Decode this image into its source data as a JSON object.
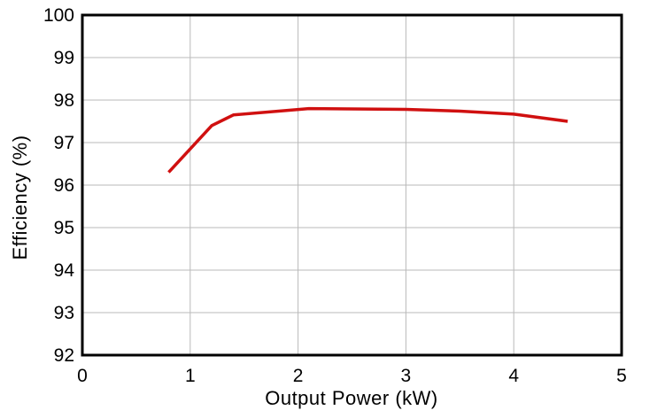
{
  "chart_data": {
    "type": "line",
    "title": "",
    "xlabel": "Output Power (kW)",
    "ylabel": "Efficiency (%)",
    "xlim": [
      0,
      5
    ],
    "ylim": [
      92,
      100
    ],
    "xticks": [
      0,
      1,
      2,
      3,
      4,
      5
    ],
    "yticks": [
      92,
      93,
      94,
      95,
      96,
      97,
      98,
      99,
      100
    ],
    "grid": true,
    "legend_position": "none",
    "series": [
      {
        "name": "Efficiency",
        "color": "#d01010",
        "x": [
          0.8,
          1.2,
          1.4,
          2.1,
          3.0,
          3.5,
          4.0,
          4.5
        ],
        "y": [
          96.3,
          97.4,
          97.65,
          97.8,
          97.78,
          97.74,
          97.67,
          97.5
        ]
      }
    ]
  },
  "colors": {
    "background": "#ffffff",
    "grid": "#b9b9b9",
    "axis_border": "#000000",
    "text": "#000000",
    "line": "#d01010"
  }
}
